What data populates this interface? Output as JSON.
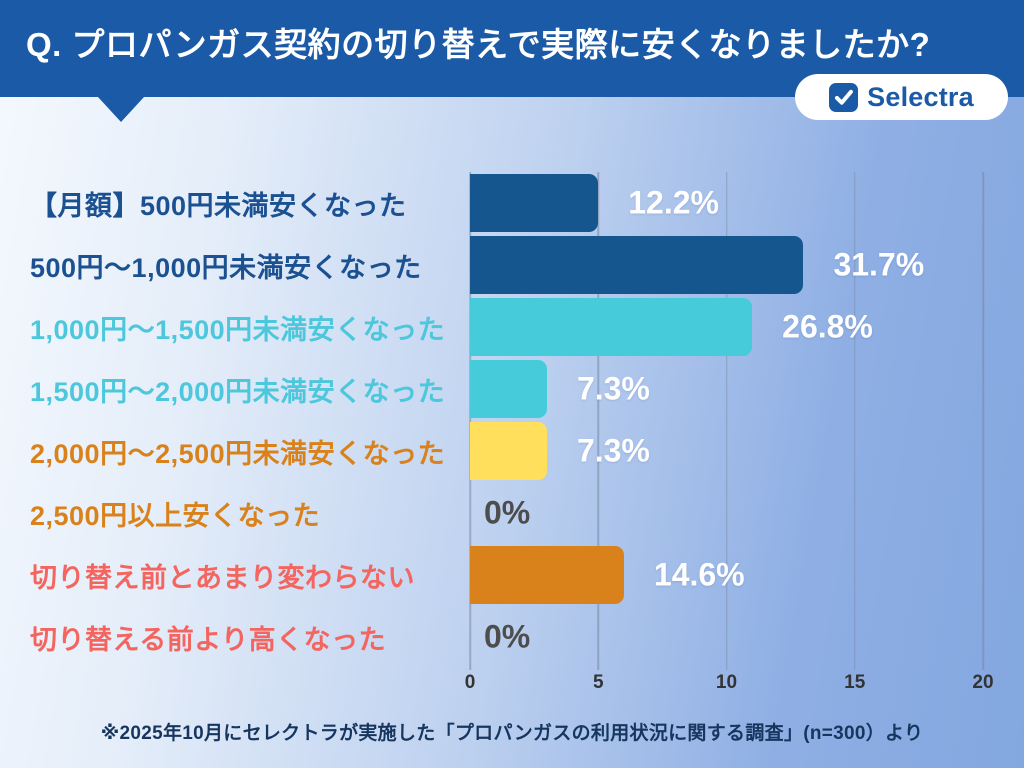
{
  "header": {
    "title": "Q. プロパンガス契約の切り替えで実際に安くなりましたか?",
    "logo_text": "Selectra",
    "logo_icon": "check-square-icon"
  },
  "chart_data": {
    "type": "bar",
    "orientation": "horizontal",
    "title": "",
    "xlabel": "",
    "ylabel": "",
    "xlim": [
      0,
      20
    ],
    "x_ticks": [
      "0",
      "5",
      "10",
      "15",
      "20"
    ],
    "grid": "vertical",
    "legend": "none",
    "categories": [
      "【月額】500円未満安くなった",
      "500円〜1,000円未満安くなった",
      "1,000円〜1,500円未満安くなった",
      "1,500円〜2,000円未満安くなった",
      "2,000円〜2,500円未満安くなった",
      "2,500円以上安くなった",
      "切り替え前とあまり変わらない",
      "切り替える前より高くなった"
    ],
    "values": [
      5,
      13,
      11,
      3,
      3,
      0,
      6,
      0
    ],
    "percentages": [
      12.2,
      31.7,
      26.8,
      7.3,
      7.3,
      0,
      14.6,
      0
    ],
    "value_labels": [
      "12.2%",
      "31.7%",
      "26.8%",
      "7.3%",
      "7.3%",
      "0%",
      "14.6%",
      "0%"
    ],
    "bar_colors": [
      "#15568f",
      "#15568f",
      "#45cbd9",
      "#45cbd9",
      "#ffdf5b",
      "#ffdf5b",
      "#d9821c",
      "#d9821c"
    ],
    "label_colors": [
      "#1b5091",
      "#1b5091",
      "#4cc7dc",
      "#4cc7dc",
      "#d9821c",
      "#d9821c",
      "#f4655f",
      "#f4655f"
    ],
    "zero_label_color": "#4d4d4d"
  },
  "footer": {
    "note": "※2025年10月にセレクトラが実施した「プロパンガスの利用状況に関する調査」(n=300）より"
  },
  "colors": {
    "brand_blue": "#1b5aa6",
    "background_left": "#f5f9fe",
    "background_right": "#83a7e0"
  }
}
